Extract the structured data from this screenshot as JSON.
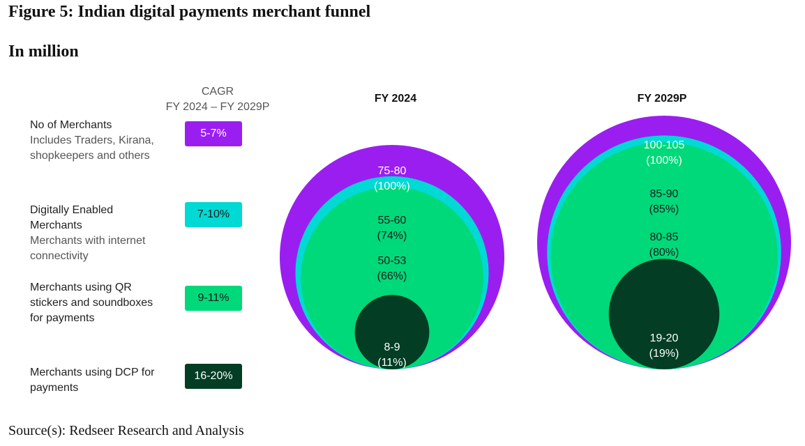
{
  "title": "Figure 5: Indian digital payments merchant funnel",
  "subtitle": "In million",
  "source": "Source(s): Redseer Research and Analysis",
  "cagr_header": {
    "line1": "CAGR",
    "line2": "FY 2024 – FY 2029P"
  },
  "colors": {
    "merchants": "#9b1ef0",
    "digital": "#00d9d4",
    "qr": "#00d97a",
    "dcp": "#023d24"
  },
  "rows": [
    {
      "label": [
        "No of Merchants"
      ],
      "desc": [
        "Includes Traders, Kirana,",
        "shopkeepers and others"
      ],
      "cagr": "5-7%"
    },
    {
      "label": [
        "Digitally Enabled",
        "Merchants"
      ],
      "desc": [
        "Merchants with internet",
        "connectivity"
      ],
      "cagr": "7-10%"
    },
    {
      "label": [
        "Merchants using QR",
        "stickers and soundboxes",
        "for payments"
      ],
      "desc": [],
      "cagr": "9-11%"
    },
    {
      "label": [
        "Merchants using DCP for",
        "payments"
      ],
      "desc": [],
      "cagr": "16-20%"
    }
  ],
  "chart_data": [
    {
      "type": "nested-circles",
      "title": "FY 2024",
      "unit": "million",
      "levels": [
        {
          "name": "No of Merchants",
          "range": [
            75,
            80
          ],
          "value_label": "75-80",
          "share_label": "(100%)",
          "share": 100
        },
        {
          "name": "Digitally Enabled Merchants",
          "range": [
            55,
            60
          ],
          "value_label": "55-60",
          "share_label": "(74%)",
          "share": 74
        },
        {
          "name": "Merchants using QR stickers and soundboxes for payments",
          "range": [
            50,
            53
          ],
          "value_label": "50-53",
          "share_label": "(66%)",
          "share": 66
        },
        {
          "name": "Merchants using DCP for payments",
          "range": [
            8,
            9
          ],
          "value_label": "8-9",
          "share_label": "(11%)",
          "share": 11
        }
      ]
    },
    {
      "type": "nested-circles",
      "title": "FY 2029P",
      "unit": "million",
      "levels": [
        {
          "name": "No of Merchants",
          "range": [
            100,
            105
          ],
          "value_label": "100-105",
          "share_label": "(100%)",
          "share": 100
        },
        {
          "name": "Digitally Enabled Merchants",
          "range": [
            85,
            90
          ],
          "value_label": "85-90",
          "share_label": "(85%)",
          "share": 85
        },
        {
          "name": "Merchants using QR stickers and soundboxes for payments",
          "range": [
            80,
            85
          ],
          "value_label": "80-85",
          "share_label": "(80%)",
          "share": 80
        },
        {
          "name": "Merchants using DCP for payments",
          "range": [
            19,
            20
          ],
          "value_label": "19-20",
          "share_label": "(19%)",
          "share": 19
        }
      ]
    }
  ]
}
